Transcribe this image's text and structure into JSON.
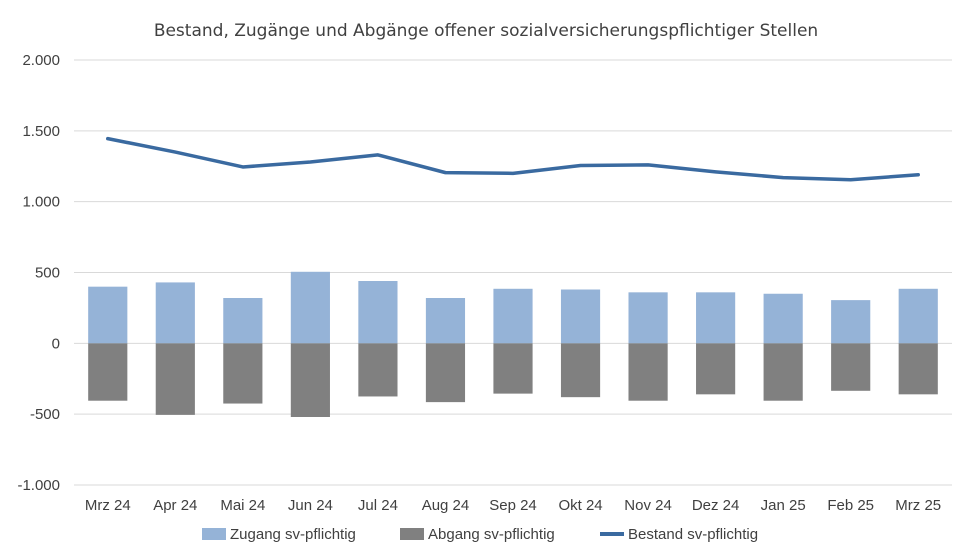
{
  "chart_data": {
    "type": "bar",
    "title": "Bestand, Zugänge und Abgänge offener sozialversicherungspflichtiger Stellen",
    "xlabel": "",
    "ylabel": "",
    "categories": [
      "Mrz 24",
      "Apr 24",
      "Mai 24",
      "Jun 24",
      "Jul 24",
      "Aug 24",
      "Sep 24",
      "Okt 24",
      "Nov 24",
      "Dez 24",
      "Jan 25",
      "Feb 25",
      "Mrz 25"
    ],
    "ylim": [
      -1000,
      2000
    ],
    "yticks": [
      -1000,
      -500,
      0,
      500,
      1000,
      1500,
      2000
    ],
    "ytick_labels": [
      "-1.000",
      "-500",
      "0",
      "500",
      "1.000",
      "1.500",
      "2.000"
    ],
    "grid": true,
    "legend_position": "bottom",
    "series": [
      {
        "name": "Zugang sv-pflichtig",
        "kind": "bar",
        "color": "#95b3d7",
        "values": [
          400,
          430,
          320,
          505,
          440,
          320,
          385,
          380,
          360,
          360,
          350,
          305,
          385
        ]
      },
      {
        "name": "Abgang sv-pflichtig",
        "kind": "bar",
        "color": "#808080",
        "values": [
          -405,
          -505,
          -425,
          -520,
          -375,
          -415,
          -355,
          -380,
          -405,
          -360,
          -405,
          -335,
          -360
        ]
      },
      {
        "name": "Bestand sv-pflichtig",
        "kind": "line",
        "color": "#3a6aa0",
        "values": [
          1445,
          1350,
          1245,
          1280,
          1330,
          1205,
          1200,
          1255,
          1260,
          1210,
          1170,
          1155,
          1190
        ]
      }
    ]
  }
}
